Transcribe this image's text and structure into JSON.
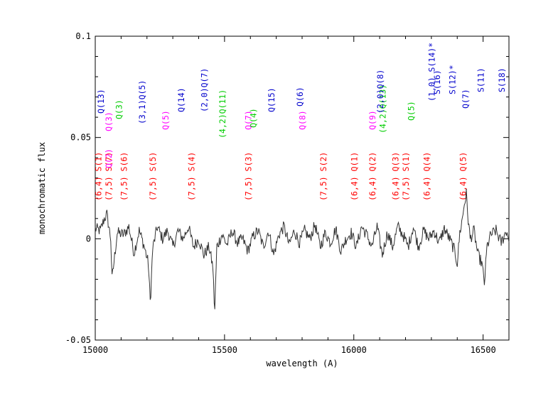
{
  "chart_data": {
    "type": "line",
    "title": "",
    "xlabel": "wavelength (A)",
    "ylabel": "monochromatic flux",
    "xlim": [
      15000,
      16600
    ],
    "ylim": [
      -0.05,
      0.1
    ],
    "xticks": [
      15000,
      15500,
      16000,
      16500
    ],
    "xtick_labels": [
      "15000",
      "15500",
      "16000",
      "16500"
    ],
    "yticks": [
      -0.05,
      0,
      0.05,
      0.1
    ],
    "ytick_labels": [
      "-0.05",
      "0",
      "0.05",
      "0.1"
    ],
    "grid": false,
    "series": [
      {
        "color": "#333333",
        "anchors": [
          [
            15000,
            0.005
          ],
          [
            15020,
            0.004
          ],
          [
            15035,
            0.01
          ],
          [
            15045,
            0.012
          ],
          [
            15060,
            0.0
          ],
          [
            15065,
            -0.02
          ],
          [
            15085,
            0.003
          ],
          [
            15110,
            0.002
          ],
          [
            15130,
            0.006
          ],
          [
            15150,
            -0.007
          ],
          [
            15170,
            0.004
          ],
          [
            15190,
            -0.004
          ],
          [
            15205,
            -0.012
          ],
          [
            15213,
            -0.032
          ],
          [
            15222,
            -0.005
          ],
          [
            15240,
            0.006
          ],
          [
            15260,
            0.0
          ],
          [
            15280,
            0.004
          ],
          [
            15300,
            -0.004
          ],
          [
            15320,
            0.004
          ],
          [
            15340,
            0.0
          ],
          [
            15360,
            0.006
          ],
          [
            15380,
            -0.004
          ],
          [
            15400,
            0.0
          ],
          [
            15420,
            -0.008
          ],
          [
            15440,
            -0.004
          ],
          [
            15455,
            -0.014
          ],
          [
            15462,
            -0.037
          ],
          [
            15470,
            -0.004
          ],
          [
            15490,
            0.002
          ],
          [
            15510,
            -0.003
          ],
          [
            15530,
            0.004
          ],
          [
            15550,
            -0.002
          ],
          [
            15570,
            0.0
          ],
          [
            15590,
            -0.006
          ],
          [
            15610,
            0.001
          ],
          [
            15630,
            0.004
          ],
          [
            15650,
            -0.004
          ],
          [
            15670,
            0.004
          ],
          [
            15690,
            -0.008
          ],
          [
            15710,
            0.002
          ],
          [
            15730,
            0.006
          ],
          [
            15750,
            -0.003
          ],
          [
            15770,
            0.004
          ],
          [
            15790,
            -0.002
          ],
          [
            15810,
            0.004
          ],
          [
            15830,
            0.0
          ],
          [
            15850,
            0.007
          ],
          [
            15870,
            -0.004
          ],
          [
            15890,
            0.003
          ],
          [
            15910,
            -0.002
          ],
          [
            15930,
            0.005
          ],
          [
            15950,
            -0.006
          ],
          [
            15970,
            0.0
          ],
          [
            15990,
            0.003
          ],
          [
            16010,
            -0.004
          ],
          [
            16030,
            0.006
          ],
          [
            16050,
            0.002
          ],
          [
            16070,
            -0.004
          ],
          [
            16090,
            0.006
          ],
          [
            16110,
            -0.008
          ],
          [
            16130,
            0.003
          ],
          [
            16150,
            -0.004
          ],
          [
            16170,
            0.006
          ],
          [
            16190,
            0.002
          ],
          [
            16210,
            -0.004
          ],
          [
            16230,
            0.006
          ],
          [
            16250,
            -0.004
          ],
          [
            16270,
            0.004
          ],
          [
            16290,
            0.0
          ],
          [
            16310,
            0.004
          ],
          [
            16330,
            -0.002
          ],
          [
            16350,
            0.005
          ],
          [
            16370,
            0.0
          ],
          [
            16390,
            -0.006
          ],
          [
            16400,
            -0.012
          ],
          [
            16410,
            0.003
          ],
          [
            16420,
            0.01
          ],
          [
            16427,
            0.017
          ],
          [
            16435,
            0.022
          ],
          [
            16442,
            0.01
          ],
          [
            16450,
            0.0
          ],
          [
            16465,
            0.004
          ],
          [
            16480,
            -0.008
          ],
          [
            16495,
            -0.012
          ],
          [
            16505,
            -0.022
          ],
          [
            16515,
            -0.004
          ],
          [
            16530,
            0.002
          ],
          [
            16550,
            0.004
          ],
          [
            16570,
            -0.002
          ],
          [
            16590,
            0.004
          ],
          [
            16600,
            0.0
          ]
        ]
      }
    ],
    "line_identifications": [
      {
        "label": "(6,4) S(1)",
        "color": "#ff0000",
        "x": 15023
      },
      {
        "label": "(7,5) S(7)",
        "color": "#ff0000",
        "x": 15063
      },
      {
        "label": "(7,5) S(6)",
        "color": "#ff0000",
        "x": 15123
      },
      {
        "label": "(7,5) S(5)",
        "color": "#ff0000",
        "x": 15233
      },
      {
        "label": "(7,5) S(4)",
        "color": "#ff0000",
        "x": 15383
      },
      {
        "label": "(7,5) S(3)",
        "color": "#ff0000",
        "x": 15603
      },
      {
        "label": "(7,5) S(2)",
        "color": "#ff0000",
        "x": 15893
      },
      {
        "label": "(6,4) Q(1)",
        "color": "#ff0000",
        "x": 16013
      },
      {
        "label": "(6,4) Q(2)",
        "color": "#ff0000",
        "x": 16083
      },
      {
        "label": "(6,4) Q(3)",
        "color": "#ff0000",
        "x": 16173
      },
      {
        "label": "(7,5) S(1)",
        "color": "#ff0000",
        "x": 16213
      },
      {
        "label": "(6,4) Q(4)",
        "color": "#ff0000",
        "x": 16293
      },
      {
        "label": "(6,4) Q(5)",
        "color": "#ff0000",
        "x": 16433
      },
      {
        "label": "Q(2)",
        "color": "#ff00ff",
        "x": 15063
      },
      {
        "label": "Q(3)",
        "color": "#ff00ff",
        "x": 15063
      },
      {
        "label": "Q(5)",
        "color": "#ff00ff",
        "x": 15283
      },
      {
        "label": "Q(7)",
        "color": "#ff00ff",
        "x": 15603
      },
      {
        "label": "Q(8)",
        "color": "#ff00ff",
        "x": 15813
      },
      {
        "label": "Q(9)",
        "color": "#ff00ff",
        "x": 16083
      },
      {
        "label": "Q(3)",
        "color": "#00cc00",
        "x": 15103
      },
      {
        "label": "(4,2)Q(11)",
        "color": "#00cc00",
        "x": 15503
      },
      {
        "label": "Q(4)",
        "color": "#00cc00",
        "x": 15623
      },
      {
        "label": "(4,2)Q(13)",
        "color": "#00cc00",
        "x": 16123
      },
      {
        "label": "Q(5)",
        "color": "#00cc00",
        "x": 16233
      },
      {
        "label": "Q(13)",
        "color": "#0000cc",
        "x": 15033
      },
      {
        "label": "(3,1)Q(5)",
        "color": "#0000cc",
        "x": 15193
      },
      {
        "label": "Q(14)",
        "color": "#0000cc",
        "x": 15343
      },
      {
        "label": "(2,0)Q(7)",
        "color": "#0000cc",
        "x": 15433
      },
      {
        "label": "Q(15)",
        "color": "#0000cc",
        "x": 15693
      },
      {
        "label": "Q(6)",
        "color": "#0000cc",
        "x": 15803
      },
      {
        "label": "(2,0)Q(8)",
        "color": "#0000cc",
        "x": 16113
      },
      {
        "label": "(1,0) S(14)*",
        "color": "#0000cc",
        "x": 16313
      },
      {
        "label": "S(16)",
        "color": "#0000cc",
        "x": 16333
      },
      {
        "label": "S(12)*",
        "color": "#0000cc",
        "x": 16393
      },
      {
        "label": "Q(7)",
        "color": "#0000cc",
        "x": 16443
      },
      {
        "label": "S(11)",
        "color": "#0000cc",
        "x": 16503
      },
      {
        "label": "S(18)",
        "color": "#0000cc",
        "x": 16583
      }
    ]
  }
}
